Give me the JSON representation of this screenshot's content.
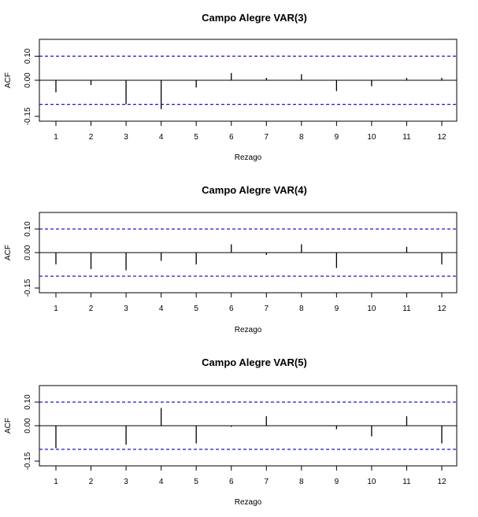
{
  "chart_data": [
    {
      "type": "bar",
      "title": "Campo Alegre VAR(3)",
      "xlabel": "Rezago",
      "ylabel": "ACF",
      "x": [
        1,
        2,
        3,
        4,
        5,
        6,
        7,
        8,
        9,
        10,
        11,
        12
      ],
      "values": [
        -0.05,
        -0.02,
        -0.1,
        -0.12,
        -0.03,
        0.03,
        0.01,
        0.025,
        -0.045,
        -0.025,
        0.01,
        0.01
      ],
      "confidence_bounds": [
        -0.1,
        0.1
      ],
      "ylim": [
        -0.17,
        0.17
      ],
      "yticks": [
        "-0.15",
        "0.00",
        "0.10"
      ],
      "xticks": [
        "1",
        "2",
        "3",
        "4",
        "5",
        "6",
        "7",
        "8",
        "9",
        "10",
        "11",
        "12"
      ],
      "grid": false
    },
    {
      "type": "bar",
      "title": "Campo Alegre VAR(4)",
      "xlabel": "Rezago",
      "ylabel": "ACF",
      "x": [
        1,
        2,
        3,
        4,
        5,
        6,
        7,
        8,
        9,
        10,
        11,
        12
      ],
      "values": [
        -0.05,
        -0.07,
        -0.075,
        -0.035,
        -0.05,
        0.035,
        -0.01,
        0.035,
        -0.065,
        0.0,
        0.025,
        -0.05
      ],
      "confidence_bounds": [
        -0.1,
        0.1
      ],
      "ylim": [
        -0.17,
        0.17
      ],
      "yticks": [
        "-0.15",
        "0.00",
        "0.10"
      ],
      "xticks": [
        "1",
        "2",
        "3",
        "4",
        "5",
        "6",
        "7",
        "8",
        "9",
        "10",
        "11",
        "12"
      ],
      "grid": false
    },
    {
      "type": "bar",
      "title": "Campo Alegre VAR(5)",
      "xlabel": "Rezago",
      "ylabel": "ACF",
      "x": [
        1,
        2,
        3,
        4,
        5,
        6,
        7,
        8,
        9,
        10,
        11,
        12
      ],
      "values": [
        -0.095,
        0.0,
        -0.08,
        0.075,
        -0.075,
        -0.005,
        0.04,
        0.0,
        -0.015,
        -0.045,
        0.04,
        -0.075
      ],
      "confidence_bounds": [
        -0.1,
        0.1
      ],
      "ylim": [
        -0.17,
        0.17
      ],
      "yticks": [
        "-0.15",
        "0.00",
        "0.10"
      ],
      "xticks": [
        "1",
        "2",
        "3",
        "4",
        "5",
        "6",
        "7",
        "8",
        "9",
        "10",
        "11",
        "12"
      ],
      "grid": false
    }
  ],
  "colors": {
    "confidence_line": "#1a1acc",
    "bars": "#000000",
    "axes": "#000000"
  }
}
